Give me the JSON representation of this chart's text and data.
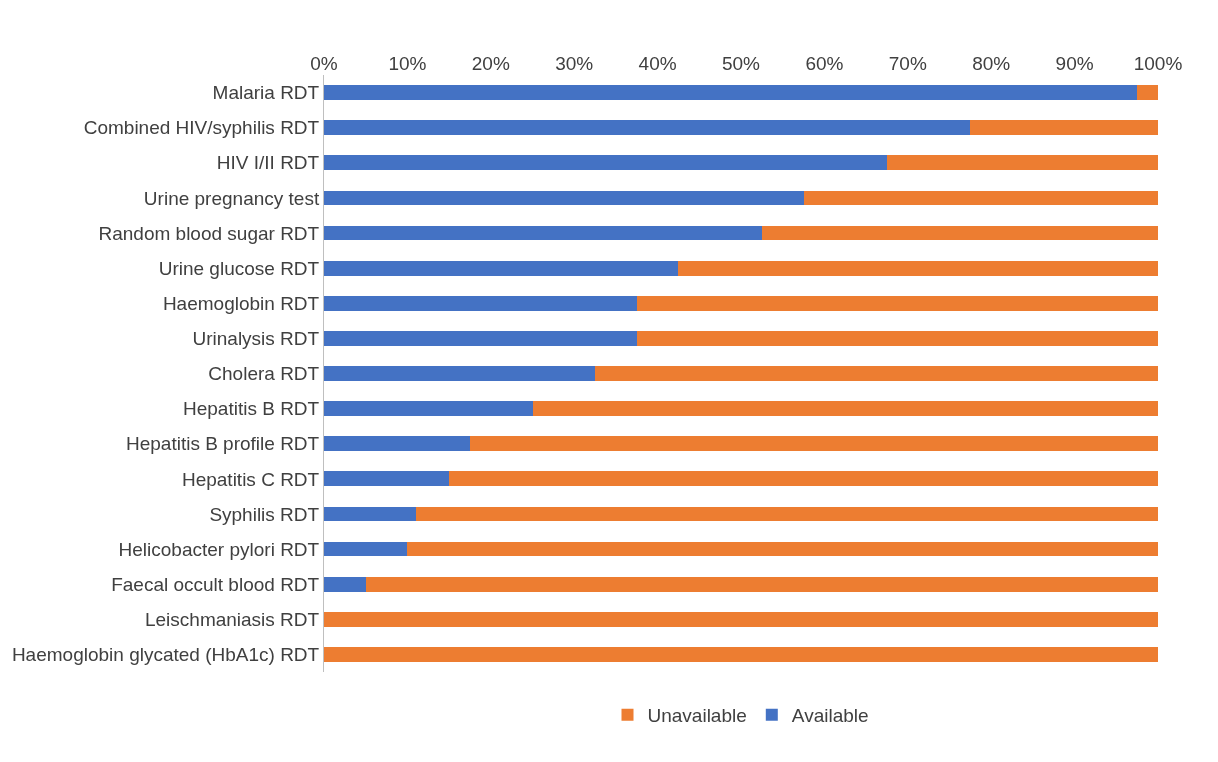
{
  "chart_data": {
    "type": "bar",
    "orientation": "horizontal",
    "stacked": true,
    "categories": [
      "Malaria RDT",
      "Combined HIV/syphilis RDT",
      "HIV I/II RDT",
      "Urine pregnancy test",
      "Random blood sugar RDT",
      "Urine glucose RDT",
      "Haemoglobin RDT",
      "Urinalysis RDT",
      "Cholera RDT",
      "Hepatitis B RDT",
      "Hepatitis B profile RDT",
      "Hepatitis C RDT",
      "Syphilis RDT",
      "Helicobacter pylori RDT",
      "Faecal occult blood RDT",
      "Leischmaniasis RDT",
      "Haemoglobin glycated (HbA1c) RDT"
    ],
    "series": [
      {
        "name": "Available",
        "color": "#4472c4",
        "values": [
          97.5,
          77.5,
          67.5,
          57.5,
          52.5,
          42.5,
          37.5,
          37.5,
          32.5,
          25,
          17.5,
          15,
          11,
          10,
          5,
          0,
          0
        ]
      },
      {
        "name": "Unavailable",
        "color": "#ed7d31",
        "values": [
          2.5,
          22.5,
          32.5,
          42.5,
          47.5,
          57.5,
          62.5,
          62.5,
          67.5,
          75,
          82.5,
          85,
          89,
          90,
          95,
          100,
          100
        ]
      }
    ],
    "xlim": [
      0,
      100
    ],
    "xticks": [
      {
        "value": 0,
        "label": "0%"
      },
      {
        "value": 10,
        "label": "10%"
      },
      {
        "value": 20,
        "label": "20%"
      },
      {
        "value": 30,
        "label": "30%"
      },
      {
        "value": 40,
        "label": "40%"
      },
      {
        "value": 50,
        "label": "50%"
      },
      {
        "value": 60,
        "label": "60%"
      },
      {
        "value": 70,
        "label": "70%"
      },
      {
        "value": 80,
        "label": "80%"
      },
      {
        "value": 90,
        "label": "90%"
      },
      {
        "value": 100,
        "label": "100%"
      }
    ],
    "grid": false,
    "legend": "bottom"
  }
}
